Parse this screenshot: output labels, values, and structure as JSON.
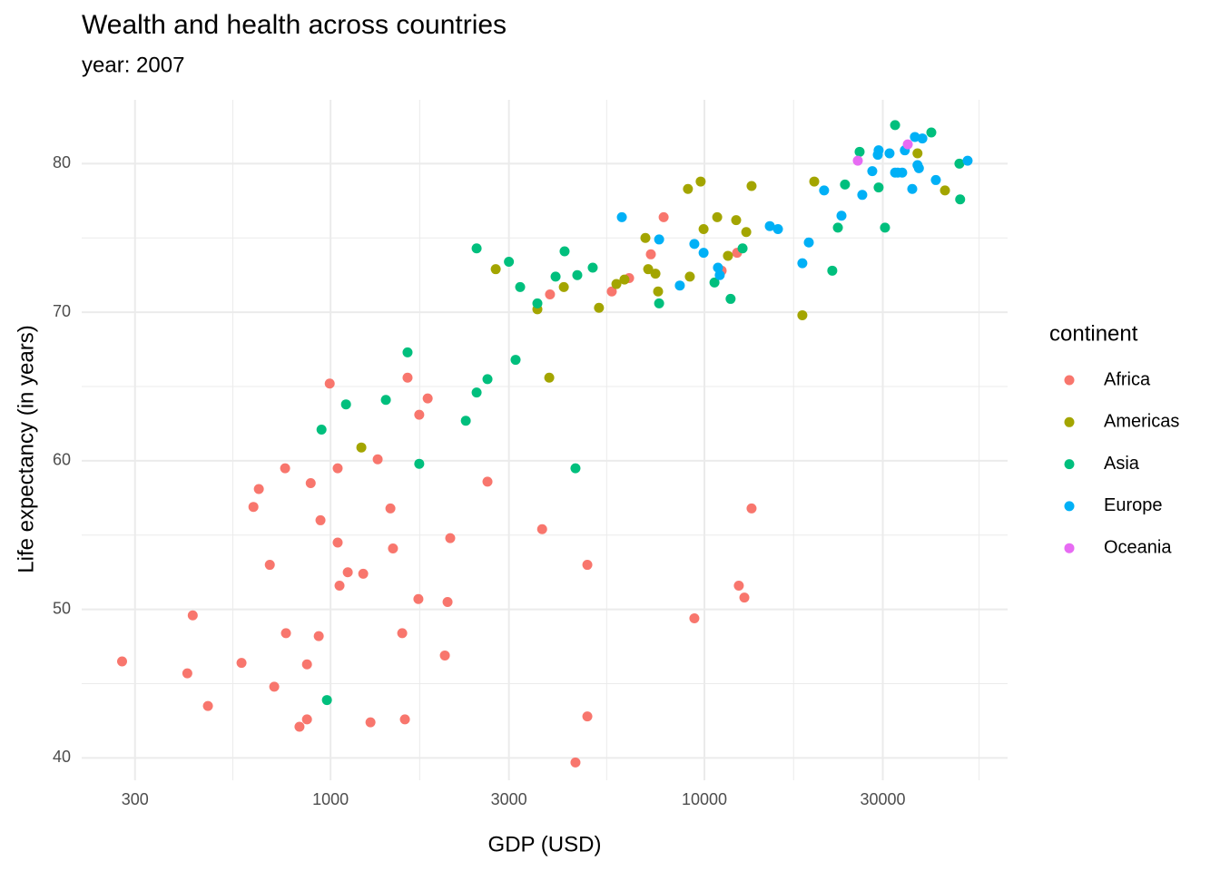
{
  "chart_data": {
    "type": "scatter",
    "title": "Wealth and health across countries",
    "subtitle": "year: 2007",
    "x_label": "GDP (USD)",
    "y_label": "Life expectancy (in years)",
    "legend_title": "continent",
    "log_x": true,
    "grid": true,
    "legend_position": "right",
    "xlim": [
      216,
      64700
    ],
    "xticks": [
      300,
      1000,
      3000,
      10000,
      30000
    ],
    "ylim": [
      38.5,
      84.3
    ],
    "yticks": [
      40,
      50,
      60,
      70,
      80
    ],
    "series": [
      {
        "name": "Africa",
        "color": "#F8766D",
        "x": [
          277,
          414,
          428,
          470,
          578,
          622,
          643,
          688,
          707,
          756,
          760,
          826,
          865,
          865,
          885,
          930,
          940,
          995,
          1045,
          1045,
          1057,
          1112,
          1223,
          1279,
          1337,
          1446,
          1469,
          1555,
          1581,
          1607,
          1718,
          1727,
          1819,
          2022,
          2056,
          2090,
          2629,
          3681,
          3864,
          4520,
          4863,
          4863,
          5653,
          6290,
          7190,
          7780,
          9400,
          11120,
          12230,
          12360,
          12790,
          13370
        ],
        "values": [
          46.5,
          45.7,
          49.6,
          43.5,
          46.4,
          56.9,
          58.1,
          53.0,
          44.8,
          59.5,
          48.4,
          42.1,
          42.6,
          46.3,
          58.5,
          48.2,
          56.0,
          65.2,
          54.5,
          59.5,
          51.6,
          52.5,
          52.4,
          42.4,
          60.1,
          56.8,
          54.1,
          48.4,
          42.6,
          65.6,
          50.7,
          63.1,
          64.2,
          46.9,
          50.5,
          54.8,
          58.6,
          55.4,
          71.2,
          39.7,
          53.0,
          42.8,
          71.4,
          72.3,
          73.9,
          76.4,
          49.4,
          72.8,
          74.0,
          51.6,
          50.8,
          56.8
        ]
      },
      {
        "name": "Americas",
        "color": "#A3A500",
        "x": [
          1209,
          2766,
          3575,
          3846,
          4207,
          5224,
          5816,
          6112,
          6953,
          7073,
          7397,
          7519,
          9037,
          9141,
          9772,
          9950,
          10820,
          11560,
          12160,
          12940,
          13370,
          18280,
          19670,
          37150,
          44000
        ],
        "values": [
          60.9,
          72.9,
          70.2,
          65.6,
          71.7,
          70.3,
          71.9,
          72.2,
          75.0,
          72.9,
          72.6,
          71.4,
          78.3,
          72.4,
          78.8,
          75.6,
          76.4,
          73.8,
          76.2,
          75.4,
          78.5,
          69.8,
          78.8,
          80.7,
          78.2
        ]
      },
      {
        "name": "Asia",
        "color": "#00BF7D",
        "x": [
          978,
          946,
          1100,
          1406,
          1607,
          1727,
          2300,
          2459,
          2459,
          2629,
          3000,
          3126,
          3215,
          3575,
          3999,
          4227,
          4520,
          4571,
          5027,
          7566,
          10640,
          11750,
          12650,
          21980,
          22750,
          23770,
          26010,
          29240,
          30410,
          32360,
          40450,
          48090,
          48310
        ],
        "values": [
          43.9,
          62.1,
          63.8,
          64.1,
          67.3,
          59.8,
          62.7,
          64.6,
          74.3,
          65.5,
          73.4,
          66.8,
          71.7,
          70.6,
          72.4,
          74.1,
          59.5,
          72.5,
          73.0,
          70.6,
          72.0,
          70.9,
          74.3,
          72.8,
          75.7,
          78.6,
          80.8,
          78.4,
          75.7,
          82.6,
          82.1,
          80.0,
          77.6
        ]
      },
      {
        "name": "Europe",
        "color": "#00B0F6",
        "x": [
          6014,
          7566,
          8595,
          9400,
          9950,
          10870,
          10990,
          14960,
          15730,
          18280,
          19020,
          20900,
          23260,
          26440,
          28120,
          29090,
          29240,
          31270,
          32360,
          32890,
          33810,
          34360,
          35970,
          36560,
          37150,
          37470,
          38280,
          41590,
          50580
        ],
        "values": [
          76.4,
          74.9,
          71.8,
          74.6,
          74.0,
          73.0,
          72.5,
          75.8,
          75.6,
          73.3,
          74.7,
          78.2,
          76.5,
          77.9,
          79.5,
          80.6,
          80.9,
          80.7,
          79.4,
          79.4,
          79.4,
          80.9,
          78.3,
          81.8,
          79.9,
          79.7,
          81.7,
          78.9,
          80.2
        ]
      },
      {
        "name": "Oceania",
        "color": "#E76BF3",
        "x": [
          25720,
          34990
        ],
        "values": [
          80.2,
          81.3
        ]
      }
    ]
  }
}
